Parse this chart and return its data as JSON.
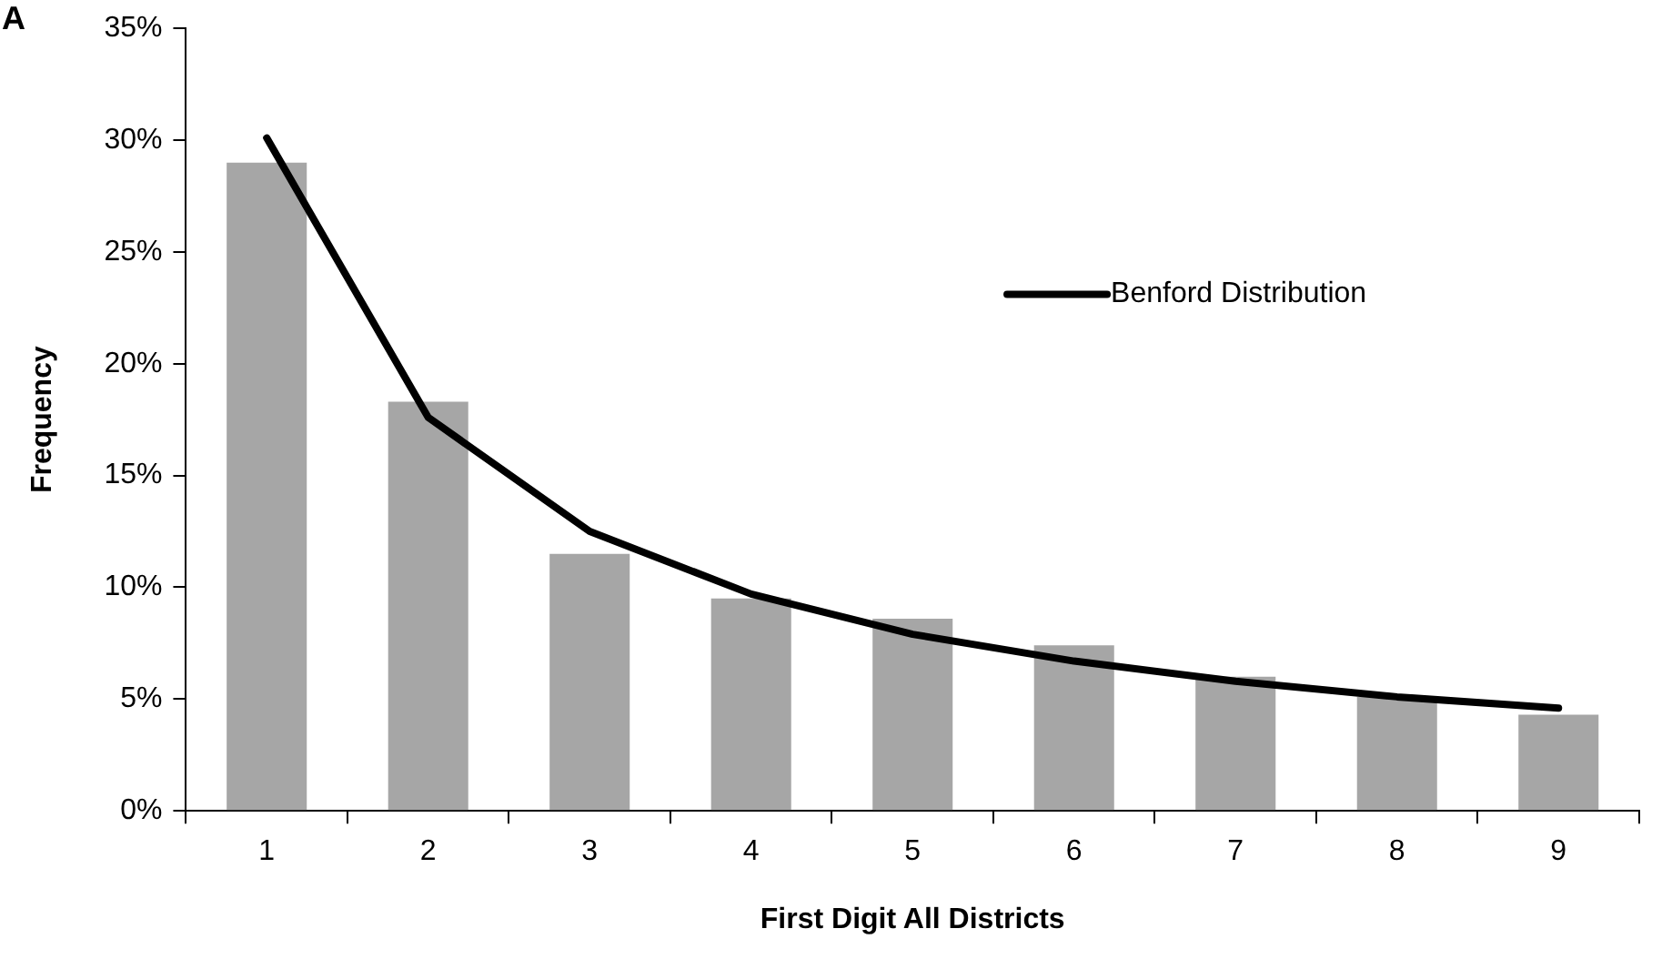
{
  "chart_data": {
    "type": "bar",
    "xlabel": "First Digit All Districts",
    "ylabel": "Frequency",
    "annotations": [
      "A"
    ],
    "categories": [
      "1",
      "2",
      "3",
      "4",
      "5",
      "6",
      "7",
      "8",
      "9"
    ],
    "series": [
      {
        "color": "#a6a6a6",
        "values": [
          29.0,
          18.3,
          11.5,
          9.5,
          8.6,
          7.4,
          6.0,
          5.1,
          4.3
        ]
      },
      {
        "type": "line",
        "name": "Benford Distribution",
        "color": "#000000",
        "values": [
          30.1,
          17.6,
          12.5,
          9.7,
          7.9,
          6.7,
          5.8,
          5.1,
          4.6
        ]
      }
    ],
    "ylim": [
      0,
      35
    ],
    "yticks": [
      {
        "value": 0,
        "label": "0%"
      },
      {
        "value": 5,
        "label": "5%"
      },
      {
        "value": 10,
        "label": "10%"
      },
      {
        "value": 15,
        "label": "15%"
      },
      {
        "value": 20,
        "label": "20%"
      },
      {
        "value": 25,
        "label": "25%"
      },
      {
        "value": 30,
        "label": "30%"
      },
      {
        "value": 35,
        "label": "35%"
      }
    ],
    "grid": false,
    "legend": "top right",
    "marker": "none",
    "line_style": "solid"
  }
}
